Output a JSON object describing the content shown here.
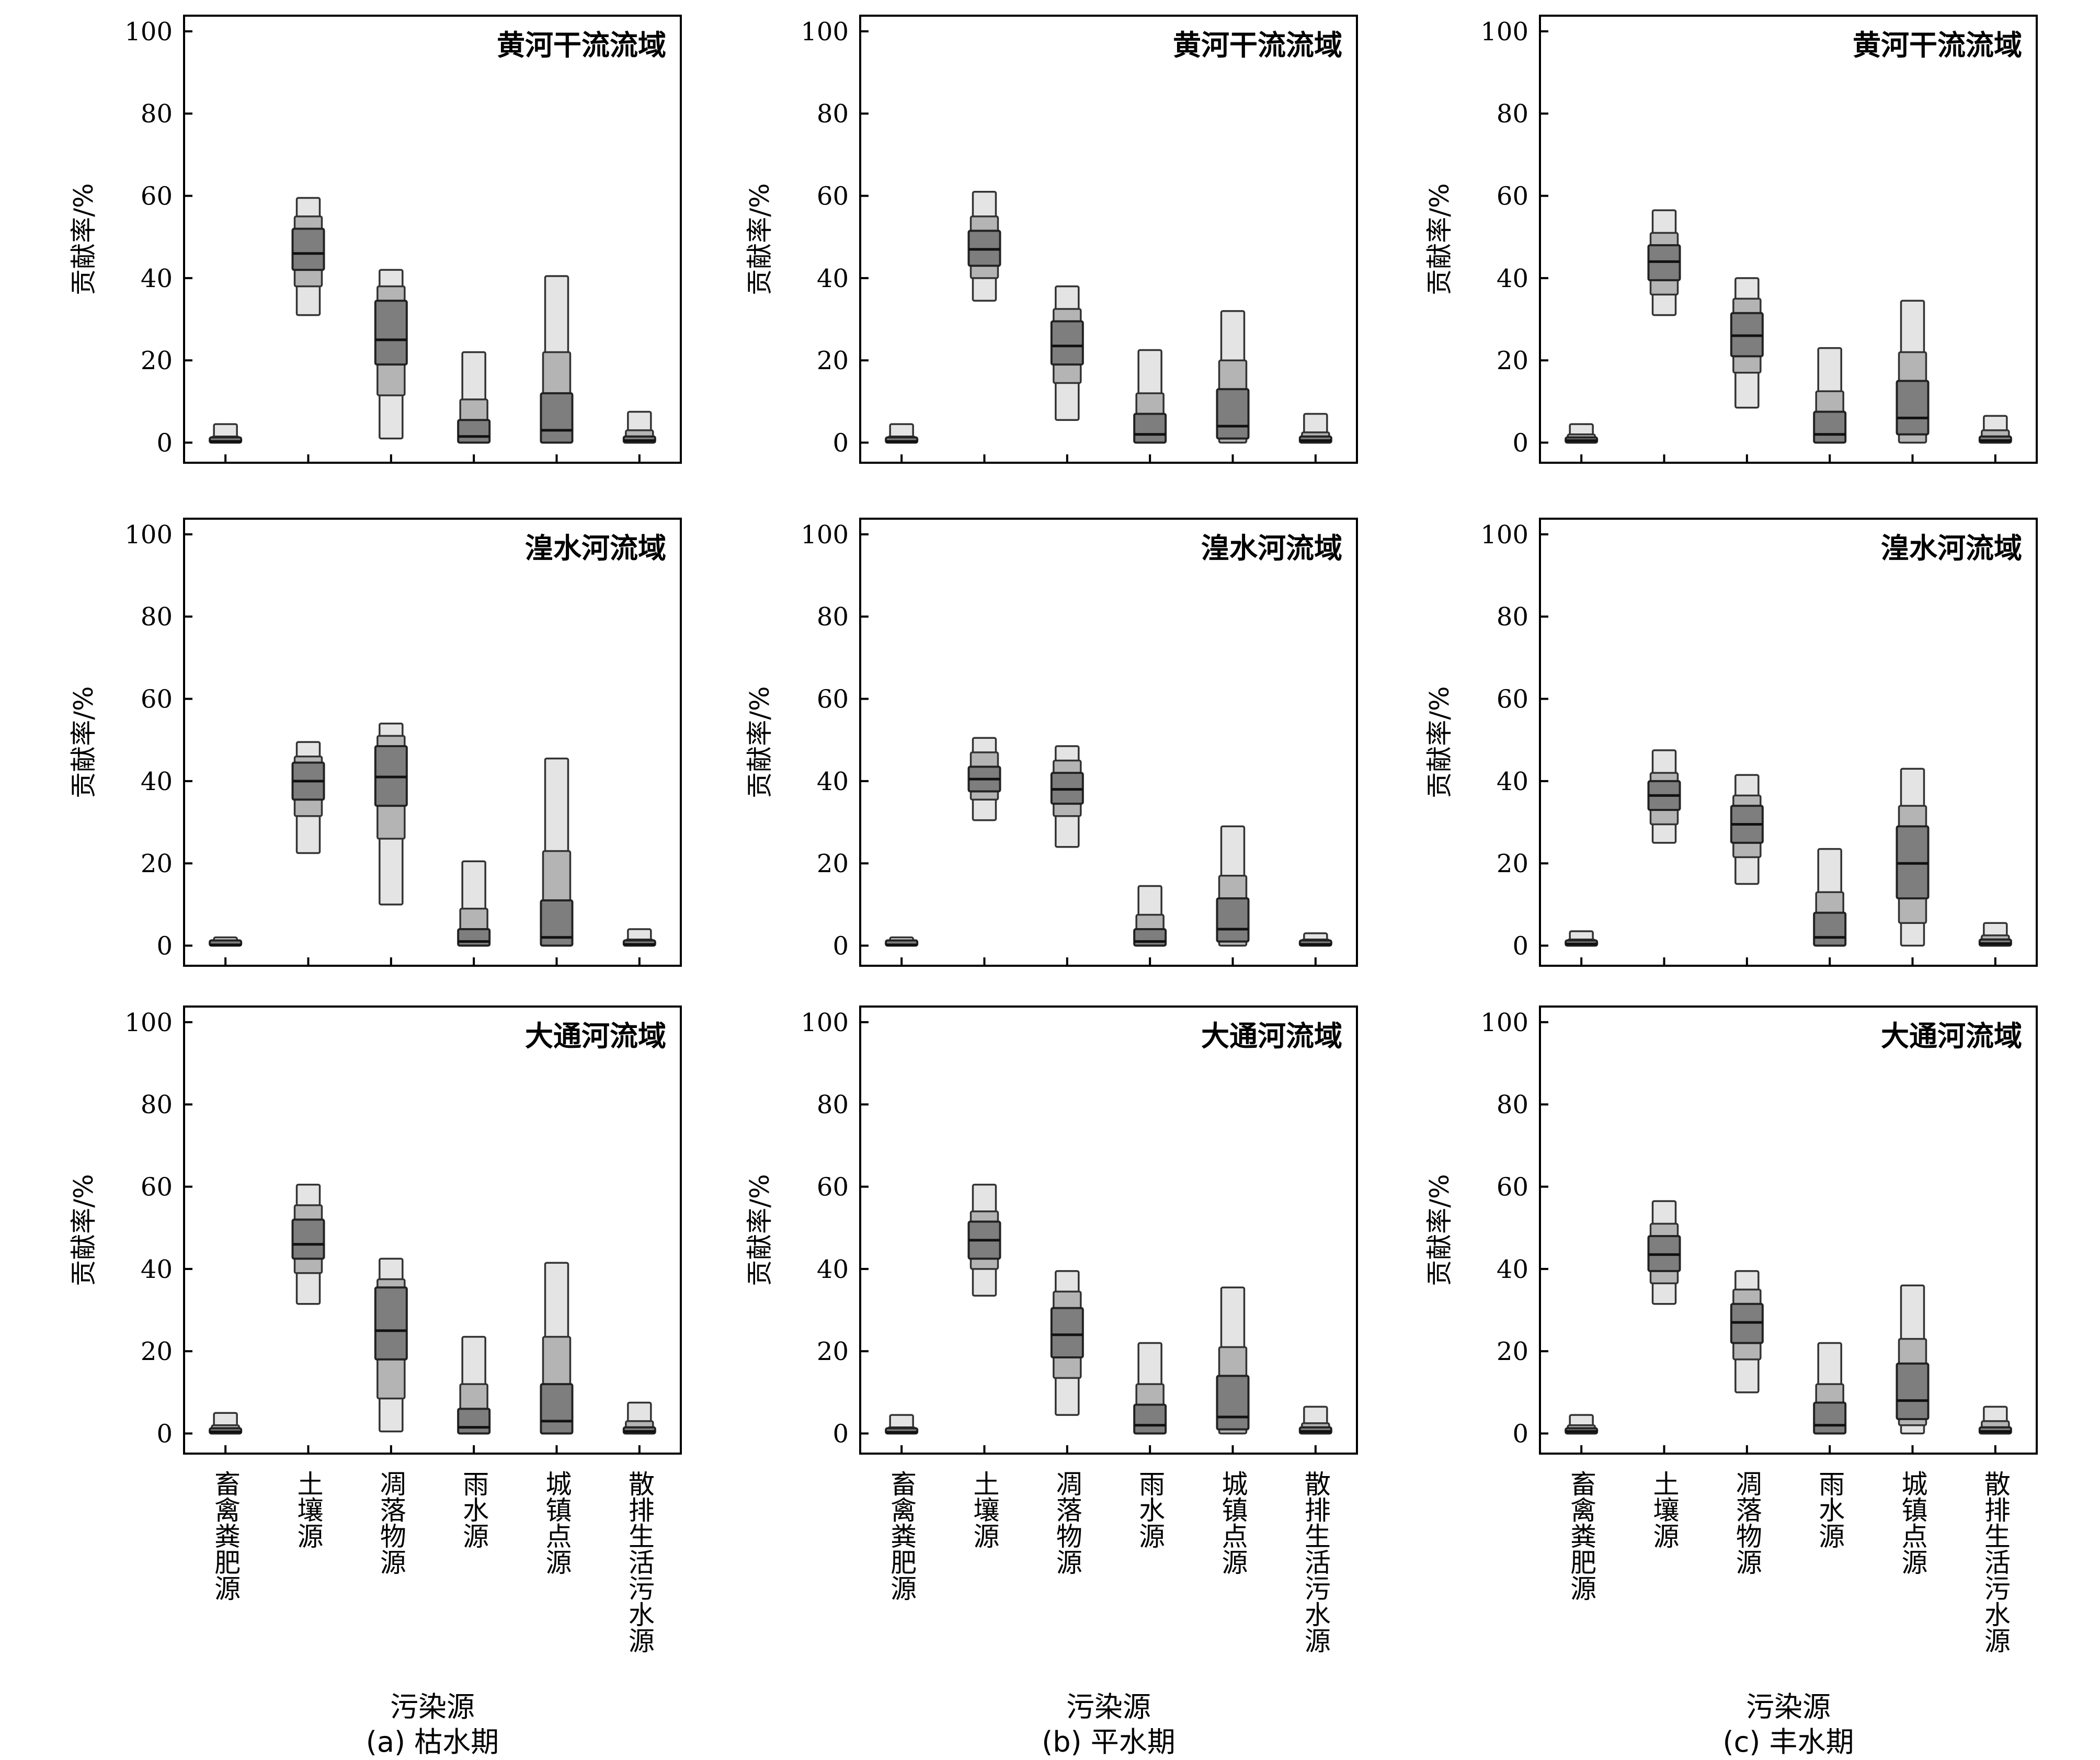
{
  "figure": {
    "ylabel": "贡献率/%",
    "xlabel": "污染源",
    "categories": [
      "畜禽粪肥源",
      "土壤源",
      "凋落物源",
      "雨水源",
      "城镇点源",
      "散排生活污水源"
    ],
    "ylim": [
      0,
      100
    ],
    "yticks": [
      0,
      20,
      40,
      60,
      80,
      100
    ],
    "columns": [
      {
        "caption": "(a) 枯水期"
      },
      {
        "caption": "(b) 平水期"
      },
      {
        "caption": "(c) 丰水期"
      }
    ],
    "rows": [
      "黄河干流流域",
      "湟水河流域",
      "大通河流域"
    ]
  },
  "chart_data": [
    {
      "type": "box",
      "title": "黄河干流流域",
      "period": "(a) 枯水期",
      "ylabel": "贡献率/%",
      "xlabel": "污染源",
      "ylim": [
        0,
        100
      ],
      "categories": [
        "畜禽粪肥源",
        "土壤源",
        "凋落物源",
        "雨水源",
        "城镇点源",
        "散排生活污水源"
      ],
      "bands": [
        {
          "outer": [
            0,
            4.5
          ],
          "mid": [
            0,
            1.5
          ],
          "inner": [
            0,
            0.8
          ],
          "median": 0.3
        },
        {
          "outer": [
            31,
            59.5
          ],
          "mid": [
            38,
            55
          ],
          "inner": [
            42,
            52
          ],
          "median": 46
        },
        {
          "outer": [
            1,
            42
          ],
          "mid": [
            11.5,
            38
          ],
          "inner": [
            19,
            34.5
          ],
          "median": 25
        },
        {
          "outer": [
            0,
            22
          ],
          "mid": [
            0,
            10.5
          ],
          "inner": [
            0,
            5.5
          ],
          "median": 1.5
        },
        {
          "outer": [
            0,
            40.5
          ],
          "mid": [
            0,
            22
          ],
          "inner": [
            0,
            12
          ],
          "median": 3
        },
        {
          "outer": [
            0,
            7.5
          ],
          "mid": [
            0,
            3
          ],
          "inner": [
            0,
            1.5
          ],
          "median": 0.5
        }
      ]
    },
    {
      "type": "box",
      "title": "黄河干流流域",
      "period": "(b) 平水期",
      "ylabel": "贡献率/%",
      "xlabel": "污染源",
      "ylim": [
        0,
        100
      ],
      "categories": [
        "畜禽粪肥源",
        "土壤源",
        "凋落物源",
        "雨水源",
        "城镇点源",
        "散排生活污水源"
      ],
      "bands": [
        {
          "outer": [
            0,
            4.5
          ],
          "mid": [
            0,
            1.5
          ],
          "inner": [
            0,
            0.8
          ],
          "median": 0.3
        },
        {
          "outer": [
            34.5,
            61
          ],
          "mid": [
            40,
            55
          ],
          "inner": [
            43,
            51.5
          ],
          "median": 47
        },
        {
          "outer": [
            5.5,
            38
          ],
          "mid": [
            14.5,
            32.5
          ],
          "inner": [
            19,
            29.5
          ],
          "median": 23.5
        },
        {
          "outer": [
            0,
            22.5
          ],
          "mid": [
            0,
            12
          ],
          "inner": [
            0,
            7
          ],
          "median": 2
        },
        {
          "outer": [
            0,
            32
          ],
          "mid": [
            0,
            20
          ],
          "inner": [
            1,
            13
          ],
          "median": 4
        },
        {
          "outer": [
            0,
            7
          ],
          "mid": [
            0,
            2.5
          ],
          "inner": [
            0,
            1.5
          ],
          "median": 0.5
        }
      ]
    },
    {
      "type": "box",
      "title": "黄河干流流域",
      "period": "(c) 丰水期",
      "ylabel": "贡献率/%",
      "xlabel": "污染源",
      "ylim": [
        0,
        100
      ],
      "categories": [
        "畜禽粪肥源",
        "土壤源",
        "凋落物源",
        "雨水源",
        "城镇点源",
        "散排生活污水源"
      ],
      "bands": [
        {
          "outer": [
            0,
            4.5
          ],
          "mid": [
            0,
            2
          ],
          "inner": [
            0,
            1
          ],
          "median": 0.5
        },
        {
          "outer": [
            31,
            56.5
          ],
          "mid": [
            36,
            51
          ],
          "inner": [
            39.5,
            48
          ],
          "median": 44
        },
        {
          "outer": [
            8.5,
            40
          ],
          "mid": [
            17,
            35
          ],
          "inner": [
            21,
            31.5
          ],
          "median": 26
        },
        {
          "outer": [
            0,
            23
          ],
          "mid": [
            0,
            12.5
          ],
          "inner": [
            0,
            7.5
          ],
          "median": 2
        },
        {
          "outer": [
            0,
            34.5
          ],
          "mid": [
            0,
            22
          ],
          "inner": [
            2,
            15
          ],
          "median": 6
        },
        {
          "outer": [
            0,
            6.5
          ],
          "mid": [
            0,
            3
          ],
          "inner": [
            0,
            1.5
          ],
          "median": 0.5
        }
      ]
    },
    {
      "type": "box",
      "title": "湟水河流域",
      "period": "(a) 枯水期",
      "ylabel": "贡献率/%",
      "xlabel": "污染源",
      "ylim": [
        0,
        100
      ],
      "categories": [
        "畜禽粪肥源",
        "土壤源",
        "凋落物源",
        "雨水源",
        "城镇点源",
        "散排生活污水源"
      ],
      "bands": [
        {
          "outer": [
            0,
            2
          ],
          "mid": [
            0,
            1
          ],
          "inner": [
            0,
            0.5
          ],
          "median": 0.2
        },
        {
          "outer": [
            22.5,
            49.5
          ],
          "mid": [
            31.5,
            46
          ],
          "inner": [
            35.5,
            44.5
          ],
          "median": 40
        },
        {
          "outer": [
            10,
            54
          ],
          "mid": [
            26,
            51
          ],
          "inner": [
            34,
            48.5
          ],
          "median": 41
        },
        {
          "outer": [
            0,
            20.5
          ],
          "mid": [
            0,
            9
          ],
          "inner": [
            0,
            4
          ],
          "median": 1
        },
        {
          "outer": [
            0,
            45.5
          ],
          "mid": [
            0,
            23
          ],
          "inner": [
            0,
            11
          ],
          "median": 2
        },
        {
          "outer": [
            0,
            4
          ],
          "mid": [
            0,
            1.5
          ],
          "inner": [
            0,
            0.8
          ],
          "median": 0.3
        }
      ]
    },
    {
      "type": "box",
      "title": "湟水河流域",
      "period": "(b) 平水期",
      "ylabel": "贡献率/%",
      "xlabel": "污染源",
      "ylim": [
        0,
        100
      ],
      "categories": [
        "畜禽粪肥源",
        "土壤源",
        "凋落物源",
        "雨水源",
        "城镇点源",
        "散排生活污水源"
      ],
      "bands": [
        {
          "outer": [
            0,
            2
          ],
          "mid": [
            0,
            1
          ],
          "inner": [
            0,
            0.5
          ],
          "median": 0.2
        },
        {
          "outer": [
            30.5,
            50.5
          ],
          "mid": [
            35.5,
            47
          ],
          "inner": [
            37.5,
            43.5
          ],
          "median": 40.5
        },
        {
          "outer": [
            24,
            48.5
          ],
          "mid": [
            31.5,
            45
          ],
          "inner": [
            34.5,
            42
          ],
          "median": 38
        },
        {
          "outer": [
            0,
            14.5
          ],
          "mid": [
            0,
            7.5
          ],
          "inner": [
            0,
            4
          ],
          "median": 1
        },
        {
          "outer": [
            0,
            29
          ],
          "mid": [
            0,
            17
          ],
          "inner": [
            1,
            11.5
          ],
          "median": 4
        },
        {
          "outer": [
            0,
            3
          ],
          "mid": [
            0,
            1.5
          ],
          "inner": [
            0,
            0.8
          ],
          "median": 0.3
        }
      ]
    },
    {
      "type": "box",
      "title": "湟水河流域",
      "period": "(c) 丰水期",
      "ylabel": "贡献率/%",
      "xlabel": "污染源",
      "ylim": [
        0,
        100
      ],
      "categories": [
        "畜禽粪肥源",
        "土壤源",
        "凋落物源",
        "雨水源",
        "城镇点源",
        "散排生活污水源"
      ],
      "bands": [
        {
          "outer": [
            0,
            3.5
          ],
          "mid": [
            0,
            1.5
          ],
          "inner": [
            0,
            0.8
          ],
          "median": 0.4
        },
        {
          "outer": [
            25,
            47.5
          ],
          "mid": [
            29.5,
            42
          ],
          "inner": [
            33,
            40
          ],
          "median": 36.5
        },
        {
          "outer": [
            15,
            41.5
          ],
          "mid": [
            21.5,
            36.5
          ],
          "inner": [
            25,
            34
          ],
          "median": 29.5
        },
        {
          "outer": [
            0,
            23.5
          ],
          "mid": [
            0,
            13
          ],
          "inner": [
            0,
            8
          ],
          "median": 2
        },
        {
          "outer": [
            0,
            43
          ],
          "mid": [
            5.5,
            34
          ],
          "inner": [
            11.5,
            29
          ],
          "median": 20
        },
        {
          "outer": [
            0,
            5.5
          ],
          "mid": [
            0,
            2.5
          ],
          "inner": [
            0,
            1.5
          ],
          "median": 0.5
        }
      ]
    },
    {
      "type": "box",
      "title": "大通河流域",
      "period": "(a) 枯水期",
      "ylabel": "贡献率/%",
      "xlabel": "污染源",
      "ylim": [
        0,
        100
      ],
      "categories": [
        "畜禽粪肥源",
        "土壤源",
        "凋落物源",
        "雨水源",
        "城镇点源",
        "散排生活污水源"
      ],
      "bands": [
        {
          "outer": [
            0,
            5
          ],
          "mid": [
            0,
            2
          ],
          "inner": [
            0,
            1
          ],
          "median": 0.4
        },
        {
          "outer": [
            31.5,
            60.5
          ],
          "mid": [
            39,
            55.5
          ],
          "inner": [
            42.5,
            52
          ],
          "median": 46
        },
        {
          "outer": [
            0.5,
            42.5
          ],
          "mid": [
            8.5,
            37.5
          ],
          "inner": [
            18,
            35.5
          ],
          "median": 25
        },
        {
          "outer": [
            0,
            23.5
          ],
          "mid": [
            0,
            12
          ],
          "inner": [
            0,
            6
          ],
          "median": 1.5
        },
        {
          "outer": [
            0,
            41.5
          ],
          "mid": [
            0,
            23.5
          ],
          "inner": [
            0,
            12
          ],
          "median": 3
        },
        {
          "outer": [
            0,
            7.5
          ],
          "mid": [
            0,
            3
          ],
          "inner": [
            0,
            1.5
          ],
          "median": 0.5
        }
      ]
    },
    {
      "type": "box",
      "title": "大通河流域",
      "period": "(b) 平水期",
      "ylabel": "贡献率/%",
      "xlabel": "污染源",
      "ylim": [
        0,
        100
      ],
      "categories": [
        "畜禽粪肥源",
        "土壤源",
        "凋落物源",
        "雨水源",
        "城镇点源",
        "散排生活污水源"
      ],
      "bands": [
        {
          "outer": [
            0,
            4.5
          ],
          "mid": [
            0,
            1.5
          ],
          "inner": [
            0,
            0.8
          ],
          "median": 0.3
        },
        {
          "outer": [
            33.5,
            60.5
          ],
          "mid": [
            40,
            54
          ],
          "inner": [
            42.5,
            51.5
          ],
          "median": 47
        },
        {
          "outer": [
            4.5,
            39.5
          ],
          "mid": [
            13.5,
            34.5
          ],
          "inner": [
            18.5,
            30.5
          ],
          "median": 24
        },
        {
          "outer": [
            0,
            22
          ],
          "mid": [
            0,
            12
          ],
          "inner": [
            0,
            7
          ],
          "median": 2
        },
        {
          "outer": [
            0,
            35.5
          ],
          "mid": [
            0,
            21
          ],
          "inner": [
            1,
            14
          ],
          "median": 4
        },
        {
          "outer": [
            0,
            6.5
          ],
          "mid": [
            0,
            2.5
          ],
          "inner": [
            0,
            1.5
          ],
          "median": 0.5
        }
      ]
    },
    {
      "type": "box",
      "title": "大通河流域",
      "period": "(c) 丰水期",
      "ylabel": "贡献率/%",
      "xlabel": "污染源",
      "ylim": [
        0,
        100
      ],
      "categories": [
        "畜禽粪肥源",
        "土壤源",
        "凋落物源",
        "雨水源",
        "城镇点源",
        "散排生活污水源"
      ],
      "bands": [
        {
          "outer": [
            0,
            4.5
          ],
          "mid": [
            0,
            2
          ],
          "inner": [
            0,
            1
          ],
          "median": 0.5
        },
        {
          "outer": [
            31.5,
            56.5
          ],
          "mid": [
            36.5,
            51
          ],
          "inner": [
            39.5,
            48
          ],
          "median": 43.5
        },
        {
          "outer": [
            10,
            39.5
          ],
          "mid": [
            18,
            35
          ],
          "inner": [
            22,
            31.5
          ],
          "median": 27
        },
        {
          "outer": [
            0,
            22
          ],
          "mid": [
            0,
            12
          ],
          "inner": [
            0,
            7.5
          ],
          "median": 2
        },
        {
          "outer": [
            0,
            36
          ],
          "mid": [
            2,
            23
          ],
          "inner": [
            3.5,
            17
          ],
          "median": 8
        },
        {
          "outer": [
            0,
            6.5
          ],
          "mid": [
            0,
            3
          ],
          "inner": [
            0,
            1.5
          ],
          "median": 0.5
        }
      ]
    }
  ]
}
